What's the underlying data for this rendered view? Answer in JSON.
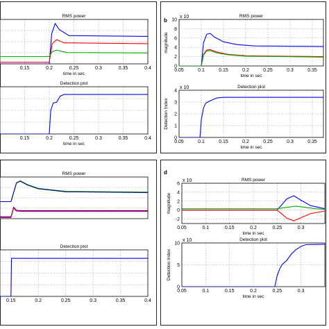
{
  "chart_data": [
    {
      "panel": "a-top",
      "panel_label": "",
      "type": "line",
      "title": "RMS power",
      "xlabel": "time in sec",
      "ylabel": "",
      "xticks": [
        "0.15",
        "0.2",
        "0.25",
        "0.3",
        "0.35",
        "0.4"
      ],
      "yticks": [],
      "exponent": "",
      "xlim": [
        0.1,
        0.4
      ],
      "ylim": [
        0,
        1.1
      ],
      "grid": true,
      "series": [
        {
          "color": "#0000ff",
          "points": [
            [
              0.1,
              0
            ],
            [
              0.2,
              0
            ],
            [
              0.205,
              0.75
            ],
            [
              0.212,
              1.0
            ],
            [
              0.22,
              0.85
            ],
            [
              0.24,
              0.7
            ],
            [
              0.4,
              0.68
            ]
          ]
        },
        {
          "color": "#ff0000",
          "points": [
            [
              0.1,
              0.04
            ],
            [
              0.2,
              0.04
            ],
            [
              0.206,
              0.5
            ],
            [
              0.215,
              0.6
            ],
            [
              0.23,
              0.52
            ],
            [
              0.4,
              0.5
            ]
          ]
        },
        {
          "color": "#00aa00",
          "points": [
            [
              0.1,
              0.18
            ],
            [
              0.2,
              0.18
            ],
            [
              0.206,
              0.3
            ],
            [
              0.215,
              0.34
            ],
            [
              0.235,
              0.28
            ],
            [
              0.4,
              0.27
            ]
          ]
        }
      ]
    },
    {
      "panel": "a-bottom",
      "panel_label": "",
      "type": "line",
      "title": "Detection plot",
      "xlabel": "time in sec",
      "ylabel": "",
      "xticks": [
        "0.15",
        "0.2",
        "0.25",
        "0.3",
        "0.35",
        "0.4"
      ],
      "yticks": [],
      "exponent": "",
      "xlim": [
        0.1,
        0.4
      ],
      "ylim": [
        0,
        1.1
      ],
      "grid": true,
      "series": [
        {
          "color": "#0000ff",
          "points": [
            [
              0.1,
              0
            ],
            [
              0.2,
              0
            ],
            [
              0.203,
              0.55
            ],
            [
              0.208,
              0.72
            ],
            [
              0.215,
              0.74
            ],
            [
              0.222,
              0.88
            ],
            [
              0.23,
              0.92
            ],
            [
              0.4,
              0.92
            ]
          ]
        }
      ]
    },
    {
      "panel": "b-top",
      "panel_label": "b",
      "type": "line",
      "title": "RMS power",
      "xlabel": "time in sec",
      "ylabel": "magnitude",
      "xticks": [
        "0.05",
        "0.1",
        "0.15",
        "0.2",
        "0.25",
        "0.3",
        "0.35"
      ],
      "yticks": [
        "0",
        "2",
        "4",
        "6",
        "8",
        "10"
      ],
      "exponent": "x 10",
      "xlim": [
        0.05,
        0.375
      ],
      "ylim": [
        0,
        10
      ],
      "grid": true,
      "series": [
        {
          "color": "#0000ff",
          "points": [
            [
              0.05,
              0
            ],
            [
              0.1,
              0
            ],
            [
              0.105,
              5
            ],
            [
              0.112,
              6.8
            ],
            [
              0.12,
              7
            ],
            [
              0.13,
              6.2
            ],
            [
              0.15,
              5.2
            ],
            [
              0.18,
              4.6
            ],
            [
              0.22,
              4.3
            ],
            [
              0.375,
              4.2
            ]
          ]
        },
        {
          "color": "#ff0000",
          "points": [
            [
              0.05,
              0
            ],
            [
              0.1,
              0
            ],
            [
              0.105,
              2.5
            ],
            [
              0.112,
              3.4
            ],
            [
              0.12,
              3.5
            ],
            [
              0.135,
              3.0
            ],
            [
              0.16,
              2.5
            ],
            [
              0.2,
              2.2
            ],
            [
              0.375,
              2.0
            ]
          ]
        },
        {
          "color": "#00aa00",
          "points": [
            [
              0.05,
              0
            ],
            [
              0.1,
              0
            ],
            [
              0.105,
              2.3
            ],
            [
              0.112,
              3.2
            ],
            [
              0.12,
              3.3
            ],
            [
              0.135,
              2.8
            ],
            [
              0.16,
              2.4
            ],
            [
              0.2,
              2.1
            ],
            [
              0.375,
              1.9
            ]
          ]
        }
      ]
    },
    {
      "panel": "b-bottom",
      "panel_label": "",
      "type": "line",
      "title": "Detection plot",
      "xlabel": "time in sec",
      "ylabel": "Detection Index",
      "xticks": [
        "0.05",
        "0.1",
        "0.15",
        "0.2",
        "0.25",
        "0.3",
        "0.35"
      ],
      "yticks": [
        "0",
        "1",
        "2",
        "3",
        "4"
      ],
      "exponent": "x 10",
      "xlim": [
        0.05,
        0.375
      ],
      "ylim": [
        0,
        4
      ],
      "grid": true,
      "series": [
        {
          "color": "#0000ff",
          "points": [
            [
              0.05,
              0
            ],
            [
              0.097,
              0
            ],
            [
              0.1,
              1.5
            ],
            [
              0.105,
              2.5
            ],
            [
              0.11,
              2.9
            ],
            [
              0.12,
              3.1
            ],
            [
              0.135,
              3.35
            ],
            [
              0.15,
              3.4
            ],
            [
              0.375,
              3.4
            ]
          ]
        }
      ]
    },
    {
      "panel": "c-top",
      "panel_label": "",
      "type": "line",
      "title": "RMS power",
      "xlabel": "",
      "ylabel": "",
      "xticks": [],
      "yticks": [],
      "exponent": "",
      "xlim": [
        0.13,
        0.4
      ],
      "ylim": [
        0,
        1.1
      ],
      "grid": true,
      "series": [
        {
          "color": "#0000ff",
          "points": [
            [
              0.13,
              0.05
            ],
            [
              0.15,
              0.05
            ],
            [
              0.155,
              0.3
            ],
            [
              0.16,
              0.22
            ],
            [
              0.17,
              0.21
            ],
            [
              0.4,
              0.21
            ]
          ]
        },
        {
          "color": "#ff0000",
          "points": [
            [
              0.13,
              0.03
            ],
            [
              0.15,
              0.03
            ],
            [
              0.155,
              0.28
            ],
            [
              0.16,
              0.2
            ],
            [
              0.17,
              0.19
            ],
            [
              0.4,
              0.19
            ]
          ]
        },
        {
          "color": "#00aa00",
          "points": [
            [
              0.13,
              0.45
            ],
            [
              0.15,
              0.45
            ],
            [
              0.16,
              0.95
            ],
            [
              0.167,
              1.0
            ],
            [
              0.18,
              0.9
            ],
            [
              0.2,
              0.8
            ],
            [
              0.25,
              0.72
            ],
            [
              0.4,
              0.7
            ]
          ]
        },
        {
          "color": "#00008b",
          "points": [
            [
              0.13,
              0.45
            ],
            [
              0.15,
              0.45
            ],
            [
              0.16,
              0.94
            ],
            [
              0.167,
              0.99
            ],
            [
              0.18,
              0.89
            ],
            [
              0.2,
              0.79
            ],
            [
              0.25,
              0.71
            ],
            [
              0.4,
              0.69
            ]
          ]
        }
      ]
    },
    {
      "panel": "c-bottom",
      "panel_label": "",
      "type": "line",
      "title": "Detection plot",
      "xlabel": "",
      "ylabel": "",
      "xticks": [
        "0.15",
        "0.2",
        "0.25",
        "0.3",
        "0.35",
        "0.4"
      ],
      "yticks": [],
      "exponent": "",
      "xlim": [
        0.13,
        0.4
      ],
      "ylim": [
        0,
        1.1
      ],
      "grid": true,
      "series": [
        {
          "color": "#0000ff",
          "points": [
            [
              0.13,
              0
            ],
            [
              0.15,
              0
            ],
            [
              0.151,
              0.9
            ],
            [
              0.4,
              0.9
            ]
          ]
        }
      ]
    },
    {
      "panel": "d-top",
      "panel_label": "d",
      "type": "line",
      "title": "RMS power",
      "xlabel": "time in sec",
      "ylabel": "magnitude",
      "xticks": [
        "0.05",
        "0.1",
        "0.15",
        "0.2",
        "0.25",
        "0.3"
      ],
      "yticks": [
        "-2",
        "0",
        "2",
        "4",
        "6"
      ],
      "exponent": "x 10",
      "xlim": [
        0.05,
        0.35
      ],
      "ylim": [
        -3,
        6
      ],
      "grid": true,
      "series": [
        {
          "color": "#0000ff",
          "points": [
            [
              0.05,
              0
            ],
            [
              0.25,
              0
            ],
            [
              0.27,
              2.5
            ],
            [
              0.285,
              3.2
            ],
            [
              0.3,
              2.2
            ],
            [
              0.32,
              1.0
            ],
            [
              0.35,
              0.3
            ]
          ]
        },
        {
          "color": "#ff0000",
          "points": [
            [
              0.05,
              0
            ],
            [
              0.25,
              0
            ],
            [
              0.27,
              -1.8
            ],
            [
              0.285,
              -2.4
            ],
            [
              0.3,
              -1.7
            ],
            [
              0.32,
              -0.8
            ],
            [
              0.35,
              -0.2
            ]
          ]
        },
        {
          "color": "#00aa00",
          "points": [
            [
              0.05,
              0.3
            ],
            [
              0.25,
              0.3
            ],
            [
              0.27,
              0.6
            ],
            [
              0.29,
              0.9
            ],
            [
              0.31,
              0.6
            ],
            [
              0.33,
              0.3
            ],
            [
              0.35,
              0.2
            ]
          ]
        }
      ]
    },
    {
      "panel": "d-bottom",
      "panel_label": "",
      "type": "line",
      "title": "Detection plot",
      "xlabel": "time in sec",
      "ylabel": "Detection Index",
      "xticks": [
        "0.05",
        "0.1",
        "0.15",
        "0.2",
        "0.25",
        "0.3"
      ],
      "yticks": [
        "0",
        "5",
        "10"
      ],
      "exponent": "x 10",
      "xlim": [
        0.05,
        0.35
      ],
      "ylim": [
        0,
        10
      ],
      "grid": true,
      "series": [
        {
          "color": "#0000ff",
          "points": [
            [
              0.05,
              0
            ],
            [
              0.245,
              0
            ],
            [
              0.25,
              2.5
            ],
            [
              0.255,
              4
            ],
            [
              0.26,
              5
            ],
            [
              0.27,
              6
            ],
            [
              0.28,
              7.5
            ],
            [
              0.29,
              8.5
            ],
            [
              0.3,
              9.2
            ],
            [
              0.31,
              9.6
            ],
            [
              0.35,
              9.7
            ]
          ]
        }
      ]
    }
  ]
}
